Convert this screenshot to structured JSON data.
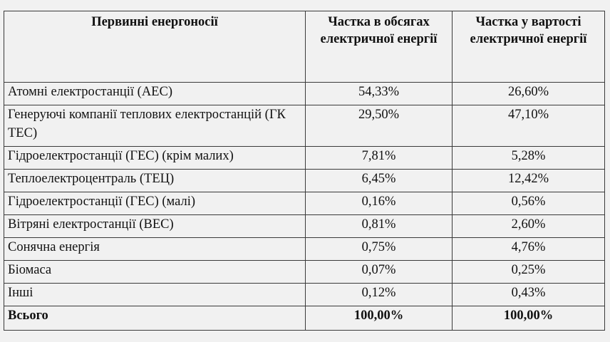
{
  "table": {
    "headers": [
      "Первинні енергоносії",
      "Частка в обсягах електричної енергії",
      "Частка у вартості електричної енергії"
    ],
    "rows": [
      {
        "name": "Атомні електростанції (АЕС)",
        "volume": "54,33%",
        "cost": "26,60%"
      },
      {
        "name": "Генеруючі компанії теплових електростанцій (ГК ТЕС)",
        "volume": "29,50%",
        "cost": "47,10%"
      },
      {
        "name": "Гідроелектростанції (ГЕС) (крім малих)",
        "volume": "7,81%",
        "cost": "5,28%"
      },
      {
        "name": "Теплоелектроцентраль (ТЕЦ)",
        "volume": "6,45%",
        "cost": "12,42%"
      },
      {
        "name": "Гідроелектростанції (ГЕС) (малі)",
        "volume": "0,16%",
        "cost": "0,56%"
      },
      {
        "name": "Вітряні електростанції (ВЕС)",
        "volume": "0,81%",
        "cost": "2,60%"
      },
      {
        "name": "Сонячна енергія",
        "volume": "0,75%",
        "cost": "4,76%"
      },
      {
        "name": "Біомаса",
        "volume": "0,07%",
        "cost": "0,25%"
      },
      {
        "name": "Інші",
        "volume": "0,12%",
        "cost": "0,43%"
      }
    ],
    "total": {
      "name": "Всього",
      "volume": "100,00%",
      "cost": "100,00%"
    }
  }
}
